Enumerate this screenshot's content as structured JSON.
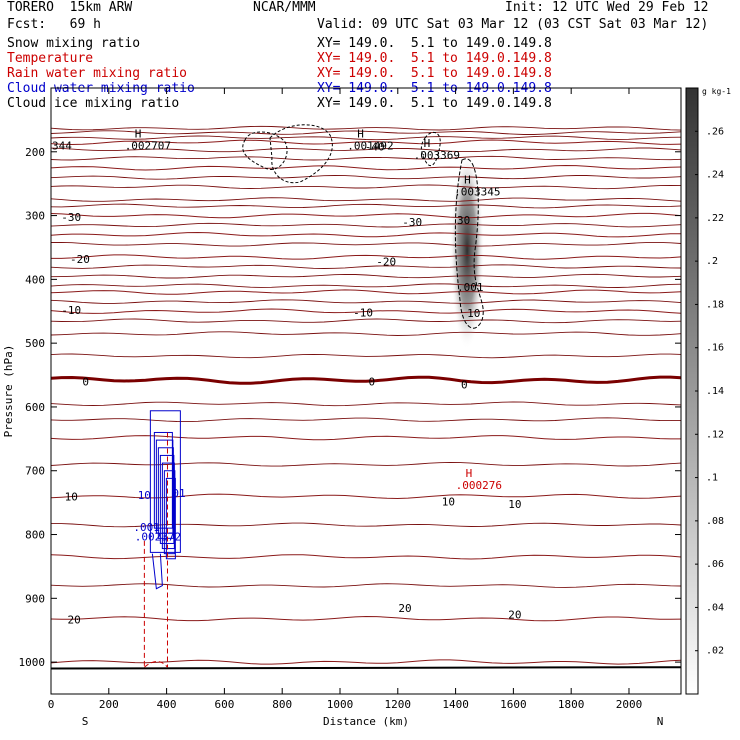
{
  "header": {
    "model": "TORERO  15km ARW",
    "org": "NCAR/MMM",
    "init": "Init: 12 UTC Wed 29 Feb 12",
    "fcst": "Fcst:   69 h",
    "valid": "Valid: 09 UTC Sat 03 Mar 12 (03 CST Sat 03 Mar 12)"
  },
  "legend": [
    {
      "name": "Snow mixing ratio",
      "xy": "XY= 149.0.  5.1 to 149.0.149.8",
      "color": "#000000"
    },
    {
      "name": "Temperature",
      "xy": "XY= 149.0.  5.1 to 149.0.149.8",
      "color": "#cc0000"
    },
    {
      "name": "Rain water mixing ratio",
      "xy": "XY= 149.0.  5.1 to 149.0.149.8",
      "color": "#cc0000"
    },
    {
      "name": "Cloud water mixing ratio",
      "xy": "XY= 149.0.  5.1 to 149.0.149.8",
      "color": "#0000cc"
    },
    {
      "name": "Cloud ice mixing ratio",
      "xy": "XY= 149.0.  5.1 to 149.0.149.8",
      "color": "#000000"
    }
  ],
  "chart_data": {
    "type": "contour-cross-section",
    "xlabel": "Distance (km)",
    "ylabel": "Pressure (hPa)",
    "xlim": [
      0,
      2180
    ],
    "ylim": [
      1050,
      100
    ],
    "xticks": [
      0,
      200,
      400,
      600,
      800,
      1000,
      1200,
      1400,
      1600,
      1800,
      2000
    ],
    "yticks": [
      200,
      300,
      400,
      500,
      600,
      700,
      800,
      900,
      1000
    ],
    "x_end_labels": {
      "left": "S",
      "right": "N"
    },
    "colorbar": {
      "units": "g kg-1",
      "ticks": [
        ".02",
        ".04",
        ".06",
        ".08",
        ".1",
        ".12",
        ".14",
        ".16",
        ".18",
        ".2",
        ".22",
        ".24",
        ".26"
      ],
      "values": [
        0.02,
        0.04,
        0.06,
        0.08,
        0.1,
        0.12,
        0.14,
        0.16,
        0.18,
        0.2,
        0.22,
        0.24,
        0.26
      ],
      "max": 0.28
    },
    "temperature_contours": [
      {
        "level": -40,
        "p": 185
      },
      {
        "level": -30,
        "p": 225
      },
      {
        "level": -30,
        "p": 300
      },
      {
        "level": -20,
        "p": 365
      },
      {
        "level": -20,
        "p": 330
      },
      {
        "level": -10,
        "p": 450
      },
      {
        "level": -10,
        "p": 420
      },
      {
        "level": 0,
        "p": 558
      },
      {
        "level": 10,
        "p": 648
      },
      {
        "level": 10,
        "p": 740
      },
      {
        "level": 20,
        "p": 835
      },
      {
        "level": 20,
        "p": 932
      },
      {
        "level": 20,
        "p": 1000
      }
    ],
    "thin_isotherms_p": [
      163,
      170,
      178,
      197,
      210,
      240,
      255,
      275,
      285,
      315,
      345,
      380,
      395,
      410,
      435,
      465,
      485,
      520,
      595,
      620,
      690,
      785,
      880
    ],
    "temperature_labels": [
      {
        "text": "-40",
        "x": 1120,
        "p": 192
      },
      {
        "text": "-30",
        "x": 70,
        "p": 302
      },
      {
        "text": "-30",
        "x": 1250,
        "p": 310
      },
      {
        "text": "-20",
        "x": 100,
        "p": 368
      },
      {
        "text": "-20",
        "x": 1160,
        "p": 372
      },
      {
        "text": "-10",
        "x": 70,
        "p": 448
      },
      {
        "text": "-10",
        "x": 1080,
        "p": 452
      },
      {
        "text": "0",
        "x": 120,
        "p": 560
      },
      {
        "text": "0",
        "x": 1110,
        "p": 560
      },
      {
        "text": "0",
        "x": 1430,
        "p": 565
      },
      {
        "text": "10",
        "x": 70,
        "p": 740
      },
      {
        "text": "10",
        "x": 1375,
        "p": 748
      },
      {
        "text": "10",
        "x": 1605,
        "p": 752
      },
      {
        "text": "20",
        "x": 80,
        "p": 933
      },
      {
        "text": "20",
        "x": 1225,
        "p": 915
      },
      {
        "text": "20",
        "x": 1605,
        "p": 925
      }
    ],
    "highs": [
      {
        "text": ".002707",
        "x": 255,
        "p": 190,
        "color": "#000000"
      },
      {
        "text": ".001492",
        "x": 1025,
        "p": 190,
        "color": "#000000"
      },
      {
        "text": ".003369",
        "x": 1255,
        "p": 205,
        "color": "#000000"
      },
      {
        "text": ".003345",
        "x": 1395,
        "p": 262,
        "color": "#000000"
      },
      {
        "text": ".000276",
        "x": 1400,
        "p": 722,
        "color": "#cc0000"
      }
    ],
    "edge_label": {
      "text": "344",
      "x": 0,
      "p": 190
    },
    "snow_shading": {
      "x_center": 1440,
      "p_top": 200,
      "p_bottom": 510,
      "max": 0.28
    },
    "snow_contour_labels": [
      {
        "text": "30",
        "x": 1405,
        "p": 307
      },
      {
        "text": ".001",
        "x": 1405,
        "p": 412
      },
      {
        "text": "10",
        "x": 1440,
        "p": 453
      }
    ],
    "cloud_water_labels": [
      {
        "text": ".001",
        "x": 285,
        "p": 788
      },
      {
        "text": "01",
        "x": 420,
        "p": 735
      },
      {
        "text": ".002372",
        "x": 290,
        "p": 803
      },
      {
        "text": "10",
        "x": 300,
        "p": 738
      }
    ]
  }
}
